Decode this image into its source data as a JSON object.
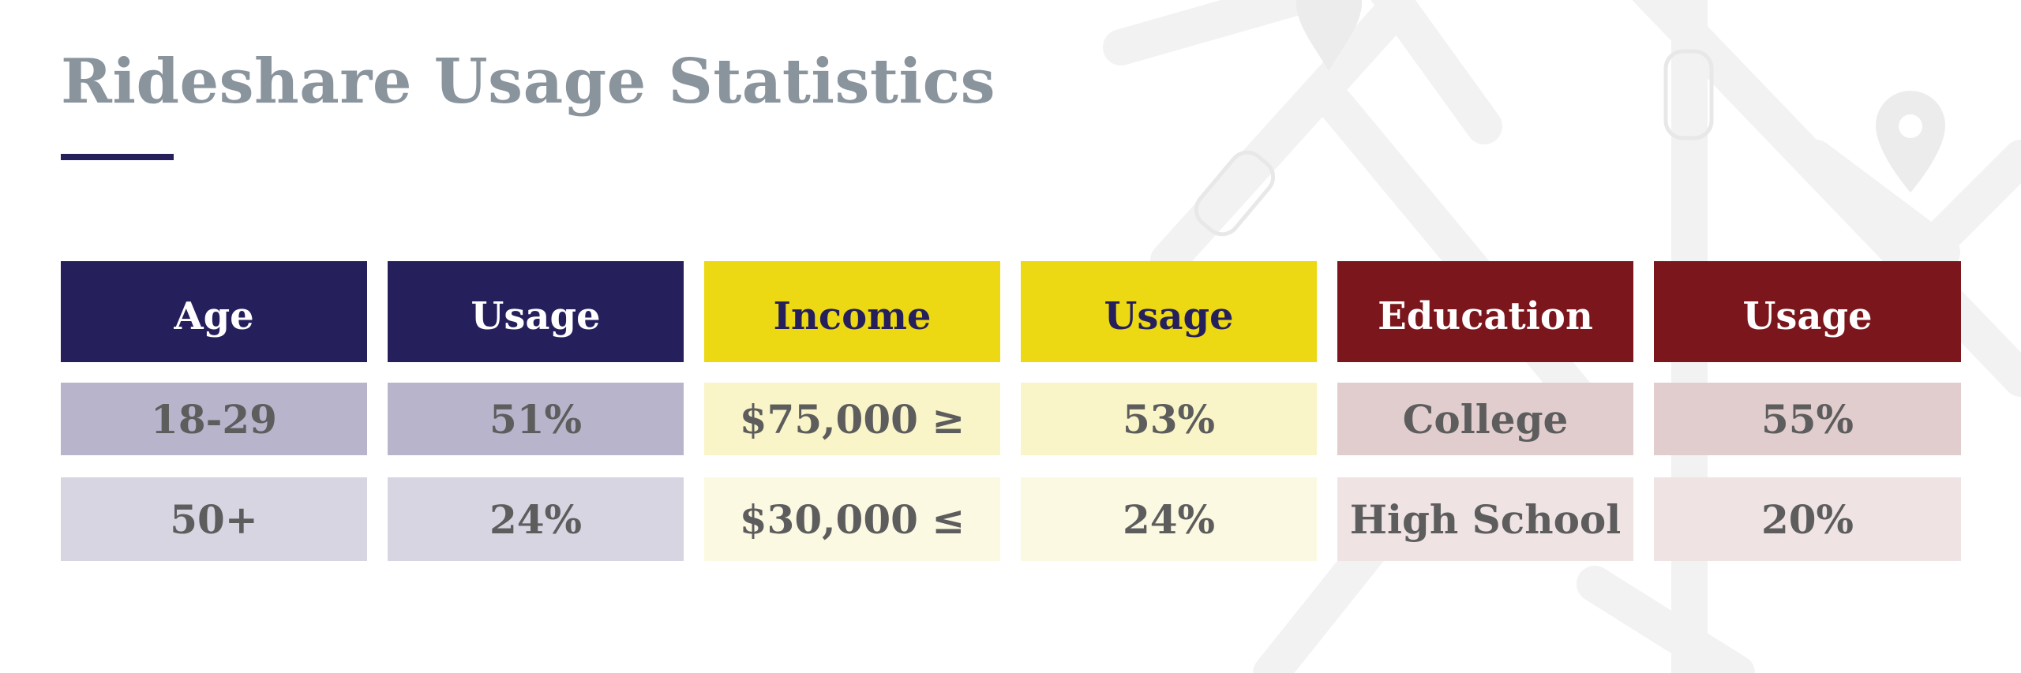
{
  "slide": {
    "title": "Rideshare Usage Statistics"
  },
  "colors": {
    "navy": "#251f5c",
    "yellow": "#ecd914",
    "maroon": "#7b171c",
    "title_gray": "#8a949d"
  },
  "table": {
    "headers": [
      "Age",
      "Usage",
      "Income",
      "Usage",
      "Education",
      "Usage"
    ],
    "rows": [
      [
        "18-29",
        "51%",
        "$75,000 ≥",
        "53%",
        "College",
        "55%"
      ],
      [
        "50+",
        "24%",
        "$30,000 ≤",
        "24%",
        "High School",
        "20%"
      ]
    ]
  },
  "decorations": {
    "background_icons": [
      "map-pin-icon",
      "car-icon",
      "road-lines"
    ]
  }
}
